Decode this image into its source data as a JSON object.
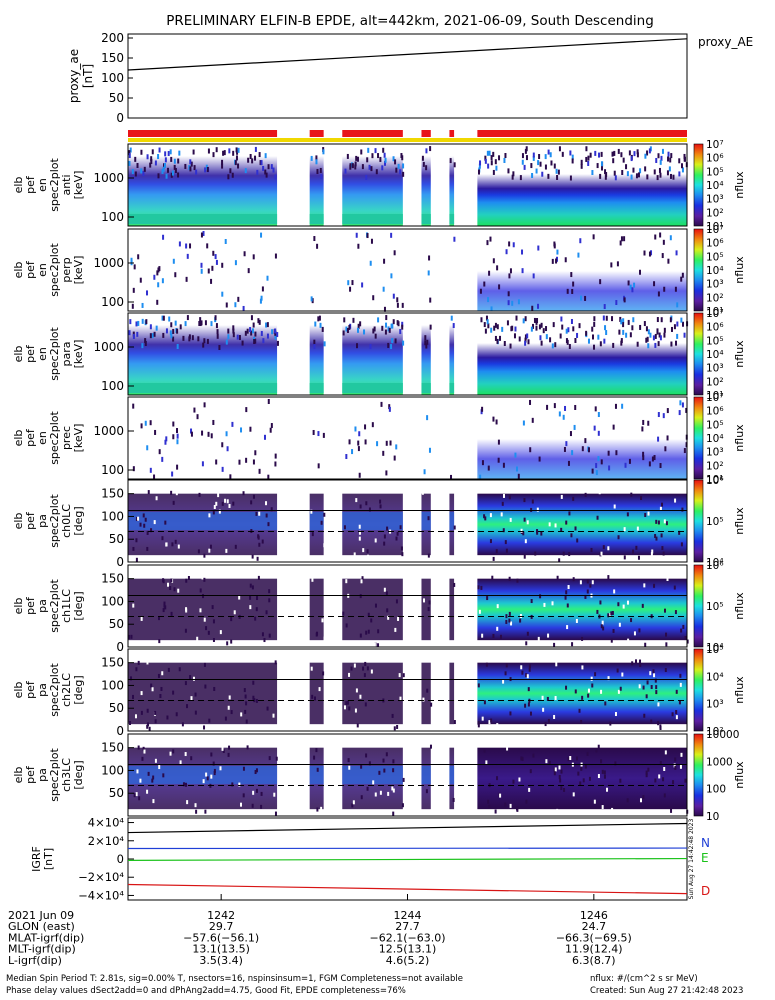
{
  "title": "PRELIMINARY ELFIN-B EPDE, alt=442km, 2021-06-09, South Descending",
  "proxy_ae_panel": {
    "ylabel_lines": [
      "proxy_ae",
      "[nT]"
    ],
    "legend": "proxy_AE",
    "ticks": [
      "200",
      "150",
      "100",
      "50",
      "0"
    ]
  },
  "energy_panels": [
    {
      "ylabel_lines": [
        "elb",
        "pef",
        "en",
        "spec2plot",
        "anti",
        "[keV]"
      ],
      "ticks": [
        "1000",
        "100"
      ],
      "cbar_ticks": [
        "10⁷",
        "10⁶",
        "10⁵",
        "10⁴",
        "10³",
        "10²",
        "10¹"
      ],
      "cbar_label": "nflux"
    },
    {
      "ylabel_lines": [
        "elb",
        "pef",
        "en",
        "spec2plot",
        "perp",
        "[keV]"
      ],
      "ticks": [
        "1000",
        "100"
      ],
      "cbar_ticks": [
        "10⁷",
        "10⁶",
        "10⁵",
        "10⁴",
        "10³",
        "10²",
        "10¹"
      ],
      "cbar_label": "nflux"
    },
    {
      "ylabel_lines": [
        "elb",
        "pef",
        "en",
        "spec2plot",
        "para",
        "[keV]"
      ],
      "ticks": [
        "1000",
        "100"
      ],
      "cbar_ticks": [
        "10⁷",
        "10⁶",
        "10⁵",
        "10⁴",
        "10³",
        "10²",
        "10¹"
      ],
      "cbar_label": "nflux"
    },
    {
      "ylabel_lines": [
        "elb",
        "pef",
        "en",
        "spec2plot",
        "prec",
        "[keV]"
      ],
      "ticks": [
        "1000",
        "100"
      ],
      "cbar_ticks": [
        "10⁷",
        "10⁶",
        "10⁵",
        "10⁴",
        "10³",
        "10²",
        "10¹"
      ],
      "cbar_label": "nflux"
    }
  ],
  "pa_panels": [
    {
      "ylabel_lines": [
        "elb",
        "pef",
        "pa",
        "spec2plot",
        "ch0LC",
        "[deg]"
      ],
      "ticks": [
        "150",
        "100",
        "50",
        "0"
      ],
      "cbar_ticks": [
        "10⁶",
        "10⁵",
        "10⁴"
      ],
      "cbar_label": "nflux"
    },
    {
      "ylabel_lines": [
        "elb",
        "pef",
        "pa",
        "spec2plot",
        "ch1LC",
        "[deg]"
      ],
      "ticks": [
        "150",
        "100",
        "50",
        "0"
      ],
      "cbar_ticks": [
        "10⁶",
        "10⁵",
        "10⁴"
      ],
      "cbar_label": "nflux"
    },
    {
      "ylabel_lines": [
        "elb",
        "pef",
        "pa",
        "spec2plot",
        "ch2LC",
        "[deg]"
      ],
      "ticks": [
        "150",
        "100",
        "50",
        "0"
      ],
      "cbar_ticks": [
        "10⁵",
        "10⁴",
        "10³",
        "10²"
      ],
      "cbar_label": "nflux"
    },
    {
      "ylabel_lines": [
        "elb",
        "pef",
        "pa",
        "spec2plot",
        "ch3LC",
        "[deg]"
      ],
      "ticks": [
        "150",
        "100",
        "50"
      ],
      "cbar_ticks": [
        "10000",
        "1000",
        "100",
        "10"
      ],
      "cbar_label": "nflux"
    }
  ],
  "bfield_panel": {
    "ylabel_lines": [
      "IGRF",
      "[nT]"
    ],
    "ticks": [
      "4×10⁴",
      "2×10⁴",
      "0",
      "−2×10⁴",
      "−4×10⁴"
    ],
    "legend": [
      {
        "label": "N",
        "color": "#1f3fd6"
      },
      {
        "label": "E",
        "color": "#19c219"
      },
      {
        "label": "D",
        "color": "#d81414"
      }
    ],
    "side_stamp": "Sun Aug 27 14:42:48 2023"
  },
  "x_axis": {
    "ticks": [
      "1242",
      "1244",
      "1246"
    ],
    "rows": [
      {
        "label": "2021 Jun 09",
        "values": [
          "1242",
          "1244",
          "1246"
        ]
      },
      {
        "label": "GLON (east)",
        "values": [
          "29.7",
          "27.7",
          "24.7"
        ]
      },
      {
        "label": "MLAT-igrf(dip)",
        "values": [
          "−57.6(−56.1)",
          "−62.1(−63.0)",
          "−66.3(−69.5)"
        ]
      },
      {
        "label": "MLT-igrf(dip)",
        "values": [
          "13.1(13.5)",
          "12.5(13.1)",
          "11.9(12.4)"
        ]
      },
      {
        "label": "L-igrf(dip)",
        "values": [
          "3.5(3.4)",
          "4.6(5.2)",
          "6.3(8.7)"
        ]
      }
    ]
  },
  "footer": {
    "line1": "Median Spin Period T: 2.81s, sig=0.00% T, nsectors=16, nspinsinsum=1, FGM Completeness=not available",
    "line2": "Phase delay values dSect2add=0 and dPhAng2add=4.75, Good Fit, EPDE completeness=76%",
    "right1": "nflux: #/(cm^2 s sr MeV)",
    "right2": "Created: Sun Aug 27 21:42:48 2023"
  },
  "colors": {
    "bar_red": "#e8141a",
    "bar_yellow": "#f0d800"
  },
  "chart_data": [
    {
      "type": "line",
      "name": "proxy_AE",
      "x": [
        "1241",
        "1247"
      ],
      "y": [
        120,
        198
      ],
      "ylim": [
        0,
        210
      ],
      "ylabel": "proxy_ae [nT]"
    },
    {
      "type": "heatmap",
      "title": "energy spectrograms (anti, perp, para, prec)",
      "ylim_keV": [
        60,
        7000
      ],
      "log_y": true,
      "data_intervals_min": [
        [
          1241.0,
          1242.6
        ],
        [
          1242.95,
          1243.1
        ],
        [
          1243.3,
          1243.95
        ],
        [
          1244.15,
          1244.25
        ],
        [
          1244.45,
          1244.5
        ],
        [
          1244.75,
          1247.0
        ]
      ]
    },
    {
      "type": "heatmap",
      "title": "pitch angle spectrograms (ch0LC-ch3LC)",
      "ylim_deg": [
        0,
        180
      ],
      "loss_cone_lines_deg": [
        113,
        67
      ]
    },
    {
      "type": "line",
      "title": "IGRF",
      "series": [
        {
          "name": "N",
          "x": [
            "1241",
            "1247"
          ],
          "y": [
            11500,
            12000
          ]
        },
        {
          "name": "E",
          "x": [
            "1241",
            "1247"
          ],
          "y": [
            -1500,
            500
          ]
        },
        {
          "name": "D",
          "x": [
            "1241",
            "1247"
          ],
          "y": [
            -28000,
            -38000
          ]
        },
        {
          "name": "|B|",
          "x": [
            "1241",
            "1247"
          ],
          "y": [
            29000,
            39000
          ]
        }
      ],
      "ylim": [
        -45000,
        45000
      ]
    }
  ]
}
